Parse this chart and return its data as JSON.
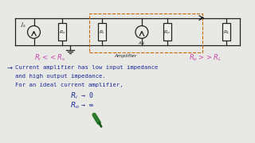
{
  "bg_color": "#e8e8e4",
  "paper_color": "#f0f0eb",
  "pink_left": "R_i << R_s",
  "pink_right": "R_o >> R_L",
  "amplifier_label": "Amplifier",
  "text_color": "#2233aa",
  "pink_color": "#cc44aa",
  "ink_color": "#1a2899",
  "circuit_color": "#222222",
  "dash_color": "#cc6600",
  "pen_color": "#2a7a2a"
}
